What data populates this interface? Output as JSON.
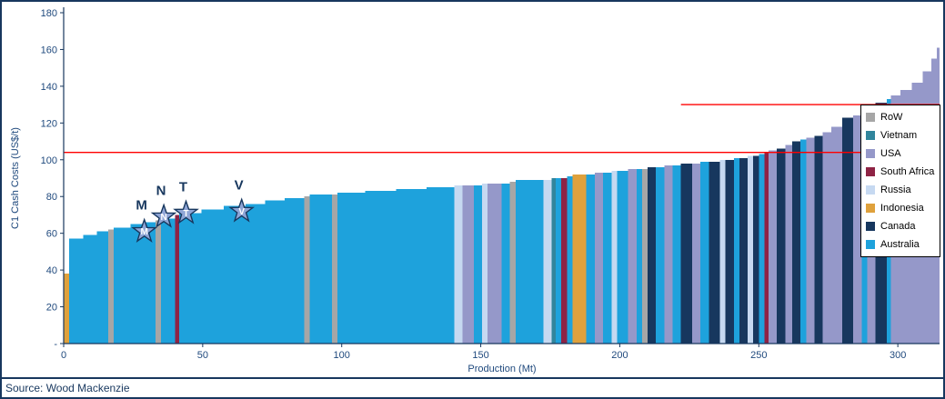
{
  "footer": {
    "source": "Source: Wood Mackenzie"
  },
  "chart_data": {
    "type": "area",
    "subtype": "cost-curve",
    "title": "",
    "xlabel": "Production (Mt)",
    "ylabel": "C1 Cash Costs (US$/t)",
    "xlim": [
      0,
      315
    ],
    "ylim": [
      0,
      180
    ],
    "grid": false,
    "legend_position": "right",
    "x_ticks": [
      0,
      50,
      100,
      150,
      200,
      250,
      300
    ],
    "y_ticks": [
      {
        "value": 0,
        "label": "-"
      },
      {
        "value": 20,
        "label": "20"
      },
      {
        "value": 40,
        "label": "40"
      },
      {
        "value": 60,
        "label": "60"
      },
      {
        "value": 80,
        "label": "80"
      },
      {
        "value": 100,
        "label": "100"
      },
      {
        "value": 120,
        "label": "120"
      },
      {
        "value": 140,
        "label": "140"
      },
      {
        "value": 160,
        "label": "160"
      },
      {
        "value": 180,
        "label": "180"
      }
    ],
    "legend": [
      "RoW",
      "Vietnam",
      "USA",
      "South Africa",
      "Russia",
      "Indonesia",
      "Canada",
      "Australia"
    ],
    "colors": {
      "RoW": "#A6A6A6",
      "Vietnam": "#31859C",
      "USA": "#9598C9",
      "South Africa": "#8E2344",
      "Russia": "#C6D9F1",
      "Indonesia": "#DFA13C",
      "Canada": "#17375E",
      "Australia": "#1EA2DC"
    },
    "reference_lines": [
      {
        "y": 104,
        "x_start": 0,
        "x_end": 315,
        "color": "#FF0000"
      },
      {
        "y": 130,
        "x_start": 222,
        "x_end": 315,
        "color": "#FF0000"
      }
    ],
    "markers": [
      {
        "label": "M",
        "x": 29,
        "y": 61
      },
      {
        "label": "N",
        "x": 36,
        "y": 69
      },
      {
        "label": "T",
        "x": 44,
        "y": 71
      },
      {
        "label": "V",
        "x": 64,
        "y": 72
      }
    ],
    "segments": [
      {
        "country": "Indonesia",
        "width": 2,
        "cost": 38
      },
      {
        "country": "Australia",
        "width": 5,
        "cost": 57
      },
      {
        "country": "Australia",
        "width": 5,
        "cost": 59
      },
      {
        "country": "Australia",
        "width": 4,
        "cost": 61
      },
      {
        "country": "RoW",
        "width": 2,
        "cost": 62
      },
      {
        "country": "Australia",
        "width": 6,
        "cost": 63
      },
      {
        "country": "Australia",
        "width": 5,
        "cost": 65
      },
      {
        "country": "Australia",
        "width": 4,
        "cost": 66
      },
      {
        "country": "RoW",
        "width": 2,
        "cost": 67
      },
      {
        "country": "Australia",
        "width": 5,
        "cost": 68
      },
      {
        "country": "South Africa",
        "width": 1.5,
        "cost": 70
      },
      {
        "country": "Australia",
        "width": 8,
        "cost": 71
      },
      {
        "country": "Australia",
        "width": 8,
        "cost": 73
      },
      {
        "country": "Australia",
        "width": 8,
        "cost": 75
      },
      {
        "country": "Australia",
        "width": 7,
        "cost": 76
      },
      {
        "country": "Australia",
        "width": 7,
        "cost": 78
      },
      {
        "country": "Australia",
        "width": 7,
        "cost": 79
      },
      {
        "country": "RoW",
        "width": 2,
        "cost": 80
      },
      {
        "country": "Australia",
        "width": 8,
        "cost": 81
      },
      {
        "country": "RoW",
        "width": 2,
        "cost": 81
      },
      {
        "country": "Australia",
        "width": 10,
        "cost": 82
      },
      {
        "country": "Australia",
        "width": 11,
        "cost": 83
      },
      {
        "country": "Australia",
        "width": 11,
        "cost": 84
      },
      {
        "country": "Australia",
        "width": 10,
        "cost": 85
      },
      {
        "country": "Russia",
        "width": 3,
        "cost": 86
      },
      {
        "country": "USA",
        "width": 4,
        "cost": 86
      },
      {
        "country": "Australia",
        "width": 3,
        "cost": 86
      },
      {
        "country": "Russia",
        "width": 2,
        "cost": 87
      },
      {
        "country": "USA",
        "width": 5,
        "cost": 87
      },
      {
        "country": "Australia",
        "width": 3,
        "cost": 87
      },
      {
        "country": "RoW",
        "width": 2,
        "cost": 88
      },
      {
        "country": "Australia",
        "width": 10,
        "cost": 89
      },
      {
        "country": "Russia",
        "width": 3,
        "cost": 89
      },
      {
        "country": "Vietnam",
        "width": 1.5,
        "cost": 90
      },
      {
        "country": "Australia",
        "width": 2,
        "cost": 90
      },
      {
        "country": "South Africa",
        "width": 2,
        "cost": 90
      },
      {
        "country": "Australia",
        "width": 2,
        "cost": 91
      },
      {
        "country": "Indonesia",
        "width": 5,
        "cost": 92
      },
      {
        "country": "Australia",
        "width": 3,
        "cost": 92
      },
      {
        "country": "USA",
        "width": 3,
        "cost": 93
      },
      {
        "country": "Australia",
        "width": 3,
        "cost": 93
      },
      {
        "country": "Russia",
        "width": 2,
        "cost": 94
      },
      {
        "country": "Australia",
        "width": 4,
        "cost": 94
      },
      {
        "country": "USA",
        "width": 3,
        "cost": 95
      },
      {
        "country": "Australia",
        "width": 2,
        "cost": 95
      },
      {
        "country": "RoW",
        "width": 2,
        "cost": 95
      },
      {
        "country": "Canada",
        "width": 3,
        "cost": 96
      },
      {
        "country": "Australia",
        "width": 3,
        "cost": 96
      },
      {
        "country": "USA",
        "width": 3,
        "cost": 97
      },
      {
        "country": "Australia",
        "width": 3,
        "cost": 97
      },
      {
        "country": "Canada",
        "width": 4,
        "cost": 98
      },
      {
        "country": "USA",
        "width": 3,
        "cost": 98
      },
      {
        "country": "Australia",
        "width": 3,
        "cost": 99
      },
      {
        "country": "Canada",
        "width": 4,
        "cost": 99
      },
      {
        "country": "Russia",
        "width": 2,
        "cost": 100
      },
      {
        "country": "Canada",
        "width": 3,
        "cost": 100
      },
      {
        "country": "Australia",
        "width": 2,
        "cost": 101
      },
      {
        "country": "Canada",
        "width": 3,
        "cost": 101
      },
      {
        "country": "Russia",
        "width": 2,
        "cost": 102
      },
      {
        "country": "Canada",
        "width": 2,
        "cost": 102
      },
      {
        "country": "Australia",
        "width": 2,
        "cost": 103
      },
      {
        "country": "South Africa",
        "width": 1.5,
        "cost": 104
      },
      {
        "country": "USA",
        "width": 3,
        "cost": 105
      },
      {
        "country": "Canada",
        "width": 3,
        "cost": 106
      },
      {
        "country": "USA",
        "width": 2.5,
        "cost": 108
      },
      {
        "country": "Canada",
        "width": 3,
        "cost": 110
      },
      {
        "country": "Australia",
        "width": 2,
        "cost": 111
      },
      {
        "country": "USA",
        "width": 3,
        "cost": 112
      },
      {
        "country": "Canada",
        "width": 3,
        "cost": 113
      },
      {
        "country": "USA",
        "width": 3,
        "cost": 115
      },
      {
        "country": "USA",
        "width": 4,
        "cost": 118
      },
      {
        "country": "Canada",
        "width": 4,
        "cost": 123
      },
      {
        "country": "USA",
        "width": 3,
        "cost": 124
      },
      {
        "country": "Australia",
        "width": 2,
        "cost": 125
      },
      {
        "country": "USA",
        "width": 3,
        "cost": 126
      },
      {
        "country": "Canada",
        "width": 4,
        "cost": 131
      },
      {
        "country": "Australia",
        "width": 1.5,
        "cost": 133
      },
      {
        "country": "USA",
        "width": 3.5,
        "cost": 135
      },
      {
        "country": "USA",
        "width": 4,
        "cost": 138
      },
      {
        "country": "USA",
        "width": 4,
        "cost": 142
      },
      {
        "country": "USA",
        "width": 3,
        "cost": 148
      },
      {
        "country": "USA",
        "width": 2,
        "cost": 155
      },
      {
        "country": "USA",
        "width": 1,
        "cost": 161
      }
    ]
  }
}
